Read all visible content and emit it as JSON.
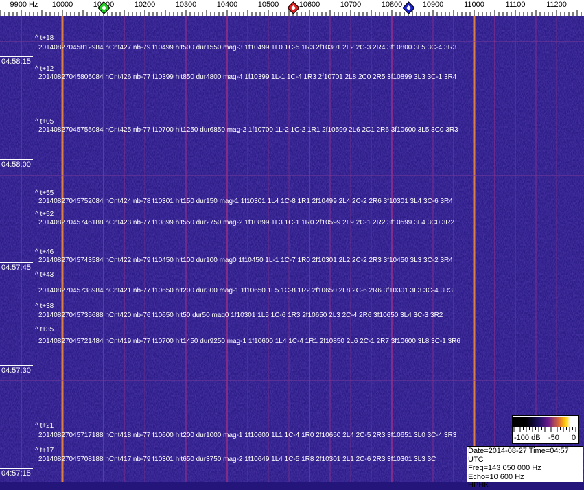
{
  "frequency_axis": {
    "unit_label": "9900 Hz",
    "labels": [
      "10000",
      "10100",
      "10200",
      "10300",
      "10400",
      "10500",
      "10600",
      "10700",
      "10800",
      "10900",
      "11000",
      "11100",
      "11200"
    ],
    "label_values": [
      10000,
      10100,
      10200,
      10300,
      10400,
      10500,
      10600,
      10700,
      10800,
      10900,
      11000,
      11100,
      11200
    ]
  },
  "markers": [
    {
      "name": "green-marker",
      "freq": 10100,
      "color": "#22cc22"
    },
    {
      "name": "red-marker",
      "freq": 10560,
      "color": "#dd2222"
    },
    {
      "name": "blue-marker",
      "freq": 10840,
      "color": "#1a22cc"
    }
  ],
  "time_labels": [
    "04:58:15",
    "04:58:00",
    "04:57:45",
    "04:57:30",
    "04:57:15"
  ],
  "detections": [
    {
      "t": "^ t+18",
      "text": "20140827045812984 hCnt427 nb-79 f10499 hit500 dur1550 mag-3 1f10499 1L0 1C-5 1R3 2f10301 2L2 2C-3 2R4 3f10800 3L5 3C-4 3R3"
    },
    {
      "t": "^ t+12",
      "text": "20140827045805084 hCnt426 nb-77 f10399 hit850 dur4800 mag-4 1f10399 1L-1 1C-4 1R3 2f10701 2L8 2C0 2R5 3f10899 3L3 3C-1 3R4"
    },
    {
      "t": "^ t+05",
      "text": "20140827045755084 hCnt425 nb-77 f10700 hit1250 dur6850 mag-2 1f10700 1L-2 1C-2 1R1 2f10599 2L6 2C1 2R6 3f10600 3L5 3C0 3R3"
    },
    {
      "t": "^ t+55",
      "text": "20140827045752084 hCnt424 nb-78 f10301 hit150 dur150 mag-1 1f10301 1L4 1C-8 1R1 2f10499 2L4 2C-2 2R6 3f10301 3L4 3C-6 3R4"
    },
    {
      "t": "^ t+52",
      "text": "20140827045746188 hCnt423 nb-77 f10899 hit550 dur2750 mag-2 1f10899 1L3 1C-1 1R0 2f10599 2L9 2C-1 2R2 3f10599 3L4 3C0 3R2"
    },
    {
      "t": "^ t+46",
      "text": "20140827045743584 hCnt422 nb-79 f10450 hit100 dur100 mag0 1f10450 1L-1 1C-7 1R0 2f10301 2L2 2C-2 2R3 3f10450 3L3 3C-2 3R4"
    },
    {
      "t": "^ t+43",
      "text": "20140827045738984 hCnt421 nb-77 f10650 hit200 dur300 mag-1 1f10650 1L5 1C-8 1R2 2f10650 2L8 2C-6 2R6 3f10301 3L3 3C-4 3R3"
    },
    {
      "t": "^ t+38",
      "text": "20140827045735688 hCnt420 nb-76 f10650 hit50 dur50 mag0 1f10301 1L5 1C-6 1R3 2f10650 2L3 2C-4 2R6 3f10650 3L4 3C-3 3R2"
    },
    {
      "t": "^ t+35",
      "text": "20140827045721484 hCnt419 nb-77 f10700 hit1450 dur9250 mag-1 1f10600 1L4 1C-4 1R1 2f10850 2L6 2C-1 2R7 3f10600 3L8 3C-1 3R6"
    },
    {
      "t": "^ t+21",
      "text": "20140827045717188 hCnt418 nb-77 f10600 hit200 dur1000 mag-1 1f10600 1L1 1C-4 1R0 2f10650 2L4 2C-5 2R3 3f10651 3L0 3C-4 3R3"
    },
    {
      "t": "^ t+17",
      "text": "20140827045708188 hCnt417 nb-79 f10301 hit650 dur3750 mag-2 1f10649 1L4 1C-5 1R8 2f10301 2L1 2C-6 2R3 3f10301 3L3 3C"
    }
  ],
  "colorbar": {
    "labels": [
      "-100 dB",
      "-50",
      "0"
    ]
  },
  "info": {
    "date_time": "Date=2014-08-27 Time=04:57 UTC",
    "freq": "Freq=143 050 000 Hz",
    "echo": "Echo=10 600 Hz",
    "station": "HPHK"
  }
}
